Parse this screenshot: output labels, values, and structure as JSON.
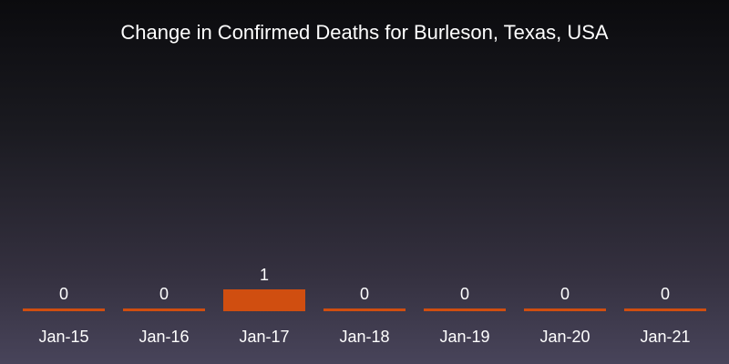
{
  "chart_data": {
    "type": "bar",
    "title": "Change in Confirmed Deaths for Burleson, Texas, USA",
    "xlabel": "",
    "ylabel": "",
    "categories": [
      "Jan-15",
      "Jan-16",
      "Jan-17",
      "Jan-18",
      "Jan-19",
      "Jan-20",
      "Jan-21"
    ],
    "values": [
      0,
      0,
      1,
      0,
      0,
      0,
      0
    ],
    "ylim": [
      0,
      1
    ],
    "grid": false,
    "bar_color": "#d04e10",
    "data_labels": true
  }
}
